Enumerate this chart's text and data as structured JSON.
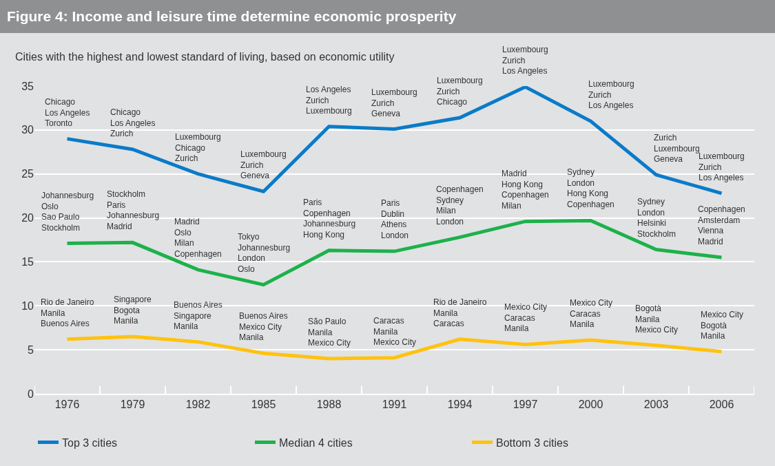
{
  "chart_data": {
    "type": "line",
    "title": "Figure 4: Income and leisure time determine economic prosperity",
    "subtitle": "Cities with the highest and lowest standard of living, based on economic utility",
    "categories": [
      "1976",
      "1979",
      "1982",
      "1985",
      "1988",
      "1991",
      "1994",
      "1997",
      "2000",
      "2003",
      "2006"
    ],
    "series": [
      {
        "name": "Top 3 cities",
        "color": "#0a7bc8",
        "values": [
          29.0,
          27.8,
          25.0,
          23.0,
          30.4,
          30.1,
          31.4,
          34.9,
          31.0,
          24.9,
          22.8
        ]
      },
      {
        "name": "Median 4 cities",
        "color": "#1db14b",
        "values": [
          17.1,
          17.2,
          14.1,
          12.4,
          16.3,
          16.2,
          17.8,
          19.6,
          19.7,
          16.4,
          15.5
        ]
      },
      {
        "name": "Bottom 3 cities",
        "color": "#ffc20e",
        "values": [
          6.2,
          6.5,
          5.9,
          4.6,
          4.0,
          4.1,
          6.2,
          5.6,
          6.1,
          5.5,
          4.8
        ]
      }
    ],
    "ylim": [
      0,
      35
    ],
    "yticks": [
      0,
      5,
      10,
      15,
      20,
      25,
      30,
      35
    ],
    "grid": "y",
    "legend": "bottom left",
    "marker": "none",
    "line_style": "solid",
    "annotations": [
      {
        "text": "Chicago\nLos Angeles\nToronto",
        "x": "1976",
        "y": 29.0
      },
      {
        "text": "Chicago\nLos Angeles\nZurich",
        "x": "1979",
        "y": 27.8
      },
      {
        "text": "Luxembourg\nChicago\nZurich",
        "x": "1982",
        "y": 25.0
      },
      {
        "text": "Luxembourg\nZurich\nGeneva",
        "x": "1985",
        "y": 23.0
      },
      {
        "text": "Los Angeles\nZurich\nLuxembourg",
        "x": "1988",
        "y": 30.4
      },
      {
        "text": "Luxembourg\nZurich\nGeneva",
        "x": "1991",
        "y": 30.1
      },
      {
        "text": "Luxembourg\nZurich\nChicago",
        "x": "1994",
        "y": 31.4
      },
      {
        "text": "Luxembourg\nZurich\nLos Angeles",
        "x": "1997",
        "y": 34.9
      },
      {
        "text": "Luxembourg\nZurich\nLos Angeles",
        "x": "2000",
        "y": 31.0
      },
      {
        "text": "Zurich\nLuxembourg\nGeneva",
        "x": "2003",
        "y": 24.9
      },
      {
        "text": "Luxembourg\nZurich\nLos Angeles",
        "x": "2006",
        "y": 22.8
      },
      {
        "text": "Johannesburg\nOslo\nSao Paulo\nStockholm",
        "x": "1976",
        "y": 17.1
      },
      {
        "text": "Stockholm\nParis\nJohannesburg\nMadrid",
        "x": "1979",
        "y": 17.2
      },
      {
        "text": "Madrid\nOslo\nMilan\nCopenhagen",
        "x": "1982",
        "y": 14.1
      },
      {
        "text": "Tokyo\nJohannesburg\nLondon\nOslo",
        "x": "1985",
        "y": 12.4
      },
      {
        "text": "Paris\nCopenhagen\nJohannesburg\nHong Kong",
        "x": "1988",
        "y": 16.3
      },
      {
        "text": "Paris\nDublin\nAthens\nLondon",
        "x": "1991",
        "y": 16.2
      },
      {
        "text": "Copenhagen\nSydney\nMilan\nLondon",
        "x": "1994",
        "y": 17.8
      },
      {
        "text": "Madrid\nHong Kong\nCopenhagen\nMilan",
        "x": "1997",
        "y": 19.6
      },
      {
        "text": "Sydney\nLondon\nHong Kong\nCopenhagen",
        "x": "2000",
        "y": 19.7
      },
      {
        "text": "Sydney\nLondon\nHelsinki\nStockholm",
        "x": "2003",
        "y": 16.4
      },
      {
        "text": "Copenhagen\nAmsterdam\nVienna\nMadrid",
        "x": "2006",
        "y": 15.5
      },
      {
        "text": "Rio de Janeiro\nManila\nBuenos Aires",
        "x": "1976",
        "y": 6.2
      },
      {
        "text": "Singapore\nBogota\nManila",
        "x": "1979",
        "y": 6.5
      },
      {
        "text": "Buenos Aires\nSingapore\nManila",
        "x": "1982",
        "y": 5.9
      },
      {
        "text": "Buenos Aires\nMexico City\nManila",
        "x": "1985",
        "y": 4.6
      },
      {
        "text": "São Paulo\nManila\nMexico City",
        "x": "1988",
        "y": 4.0
      },
      {
        "text": "Caracas\nManila\nMexico City",
        "x": "1991",
        "y": 4.1
      },
      {
        "text": "Rio de Janeiro\nManila\nCaracas",
        "x": "1994",
        "y": 6.2
      },
      {
        "text": "Mexico City\nCaracas\nManila",
        "x": "1997",
        "y": 5.6
      },
      {
        "text": "Mexico City\nCaracas\nManila",
        "x": "2000",
        "y": 6.1
      },
      {
        "text": "Bogotà\nManila\nMexico City",
        "x": "2003",
        "y": 5.5
      },
      {
        "text": "Mexico City\nBogotà\nManila",
        "x": "2006",
        "y": 4.8
      }
    ]
  }
}
